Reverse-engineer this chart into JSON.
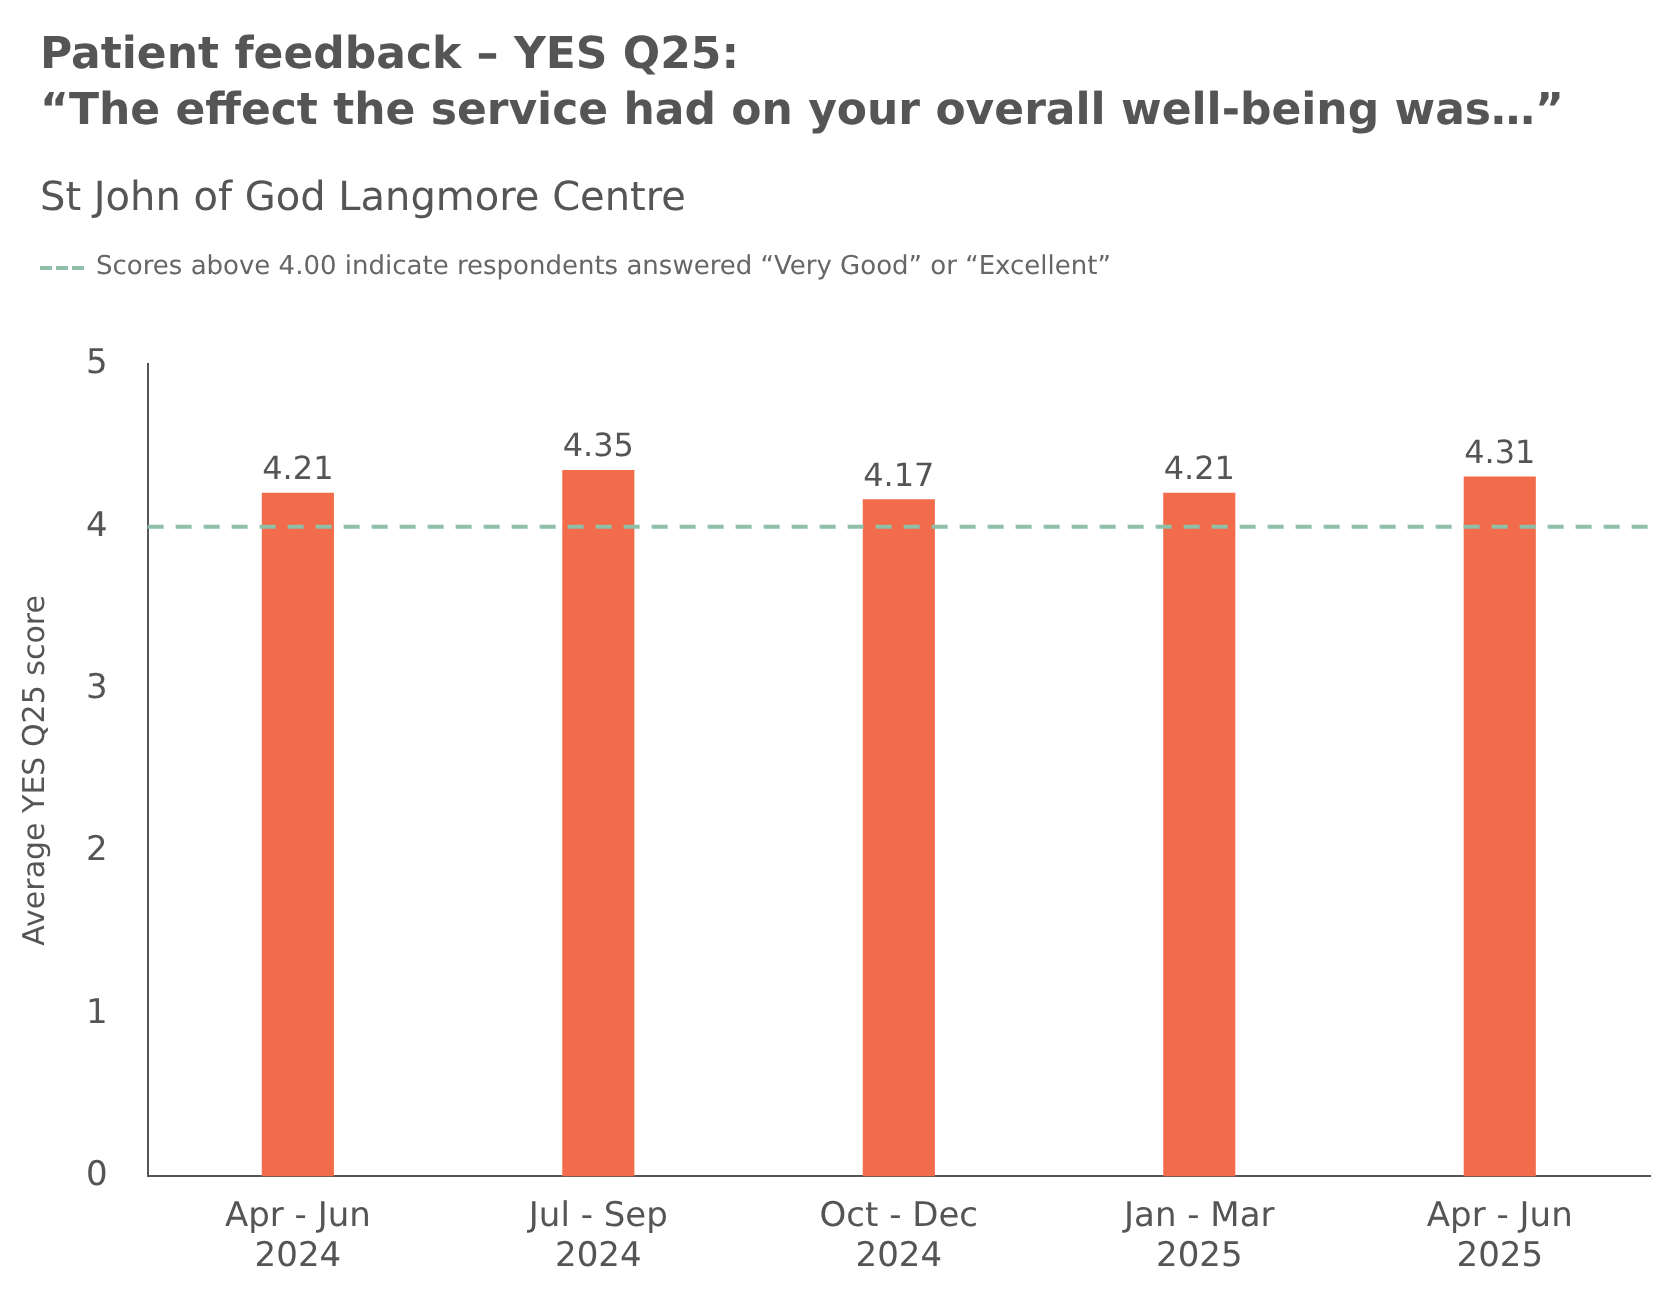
{
  "chart_data": {
    "type": "bar",
    "title": "Patient feedback – YES Q25:\n“The effect the service had on your overall well-being was…”",
    "subtitle": "St John of God Langmore Centre",
    "ylabel": "Average YES Q25 score",
    "categories": [
      "Apr - Jun 2024",
      "Jul - Sep 2024",
      "Oct - Dec 2024",
      "Jan - Mar 2025",
      "Apr - Jun 2025"
    ],
    "values": [
      4.21,
      4.35,
      4.17,
      4.21,
      4.31
    ],
    "color": "#f26b4a",
    "data_labels": true,
    "ylim": [
      0,
      5
    ],
    "yticks": [
      0,
      1,
      2,
      3,
      4,
      5
    ],
    "grid": false,
    "legend": "top left",
    "ref_lines": [
      {
        "axis": "y",
        "value": 4,
        "label": "Scores above 4.00 indicate respondents answered “Very Good” or “Excellent”",
        "color": "#8fbfa9",
        "line_style": "dashed"
      }
    ]
  }
}
